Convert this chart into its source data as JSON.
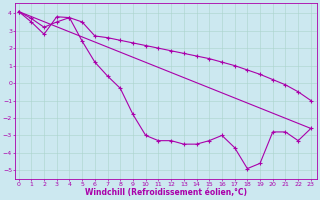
{
  "background_color": "#cce8f0",
  "grid_color": "#aad4cc",
  "line_color": "#aa00aa",
  "xlabel": "Windchill (Refroidissement éolien,°C)",
  "xlabel_fontsize": 5.5,
  "ytick_labels": [
    "-5",
    "-4",
    "-3",
    "-2",
    "-1",
    "0",
    "1",
    "2",
    "3",
    "4"
  ],
  "yticks": [
    -5,
    -4,
    -3,
    -2,
    -1,
    0,
    1,
    2,
    3,
    4
  ],
  "xticks": [
    0,
    1,
    2,
    3,
    4,
    5,
    6,
    7,
    8,
    9,
    10,
    11,
    12,
    13,
    14,
    15,
    16,
    17,
    18,
    19,
    20,
    21,
    22,
    23
  ],
  "xlim": [
    -0.3,
    23.5
  ],
  "ylim": [
    -5.5,
    4.6
  ],
  "line1_x": [
    0,
    1,
    2,
    3,
    4,
    5,
    6,
    7,
    8,
    9,
    10,
    11,
    12,
    13,
    14,
    15,
    16,
    17,
    18,
    19,
    20,
    21,
    22,
    23
  ],
  "line1_y": [
    4.1,
    3.7,
    3.2,
    3.5,
    3.75,
    3.5,
    2.7,
    2.6,
    2.45,
    2.3,
    2.15,
    2.0,
    1.85,
    1.7,
    1.55,
    1.4,
    1.2,
    1.0,
    0.75,
    0.5,
    0.2,
    -0.1,
    -0.5,
    -1.0
  ],
  "line2_x": [
    0,
    1,
    2,
    3,
    4,
    5,
    6,
    7,
    8,
    9,
    10,
    11,
    12,
    13,
    14,
    15,
    16,
    17,
    18,
    19,
    20,
    21,
    22,
    23
  ],
  "line2_y": [
    4.1,
    3.5,
    2.8,
    3.8,
    3.75,
    2.4,
    1.2,
    0.4,
    -0.3,
    -1.8,
    -3.0,
    -3.3,
    -3.3,
    -3.5,
    -3.5,
    -3.3,
    -3.0,
    -3.7,
    -4.9,
    -4.6,
    -2.8,
    -2.8,
    -3.3,
    -2.6
  ],
  "line3_x": [
    0,
    23
  ],
  "line3_y": [
    4.1,
    -2.6
  ],
  "tick_fontsize": 4.5,
  "tick_color": "#aa00aa",
  "spine_color": "#aa00aa"
}
